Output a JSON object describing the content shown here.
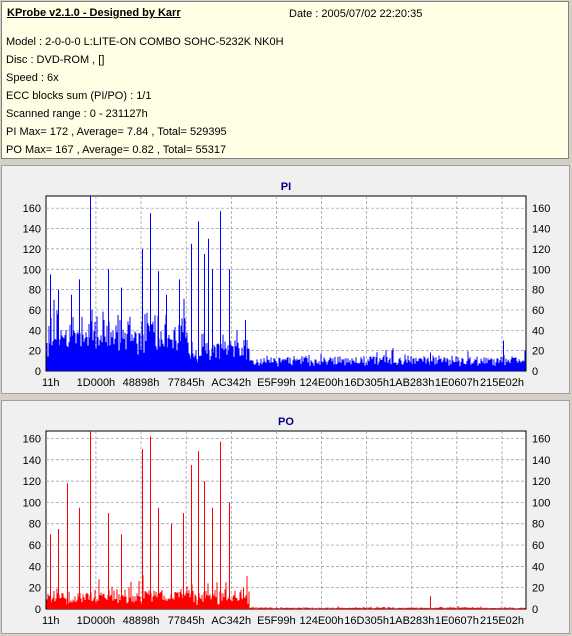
{
  "header": {
    "app_title": "KProbe v2.1.0 - Designed by Karr",
    "date": "Date : 2005/07/02 22:20:35",
    "lines": [
      "Model : 2-0-0-0 L:LITE-ON COMBO SOHC-5232K NK0H",
      "Disc : DVD-ROM ,  []",
      "Speed : 6x",
      "ECC blocks sum (PI/PO) : 1/1",
      "Scanned range : 0 - 231127h",
      "PI Max= 172 , Average= 7.84 , Total= 529395",
      "PO Max= 167 , Average= 0.82 , Total= 55317"
    ]
  },
  "chart_data": [
    {
      "type": "bar",
      "title": "PI",
      "color": "#0000ff",
      "xlim": [
        0,
        231127
      ],
      "ylim": [
        0,
        172
      ],
      "yticks": [
        0,
        20,
        40,
        60,
        80,
        100,
        120,
        140,
        160
      ],
      "xtick_labels": [
        "11h",
        "1D000h",
        "48898h",
        "77845h",
        "AC342h",
        "E5F99h",
        "124E00h",
        "16D305h",
        "1AB283h",
        "1E0607h",
        "215E02h"
      ],
      "xtick_values": [
        17,
        118784,
        297112,
        489541,
        705346,
        941977,
        1199616,
        1495813,
        1749635,
        1967623,
        2186754
      ],
      "grid": "dashed",
      "segments": [
        {
          "from": 0,
          "to": 68000,
          "base": 38,
          "spread": 24
        },
        {
          "from": 68000,
          "to": 98000,
          "base": 20,
          "spread": 14
        },
        {
          "from": 98000,
          "to": 231127,
          "base": 10,
          "spread": 8
        }
      ],
      "spikes": [
        [
          2000,
          95
        ],
        [
          6000,
          80
        ],
        [
          12000,
          75
        ],
        [
          16000,
          90
        ],
        [
          21000,
          172
        ],
        [
          30000,
          100
        ],
        [
          36000,
          82
        ],
        [
          46000,
          120
        ],
        [
          50000,
          155
        ],
        [
          54000,
          98
        ],
        [
          58000,
          75
        ],
        [
          64000,
          90
        ],
        [
          70000,
          125
        ],
        [
          73000,
          147
        ],
        [
          76000,
          115
        ],
        [
          78000,
          130
        ],
        [
          80000,
          100
        ],
        [
          84000,
          157
        ],
        [
          88000,
          100
        ],
        [
          96000,
          50
        ],
        [
          185000,
          18
        ],
        [
          220000,
          30
        ]
      ]
    },
    {
      "type": "bar",
      "title": "PO",
      "color": "#ff0000",
      "xlim": [
        0,
        231127
      ],
      "ylim": [
        0,
        167
      ],
      "yticks": [
        0,
        20,
        40,
        60,
        80,
        100,
        120,
        140,
        160
      ],
      "xtick_labels": [
        "11h",
        "1D000h",
        "48898h",
        "77845h",
        "AC342h",
        "E5F99h",
        "124E00h",
        "16D305h",
        "1AB283h",
        "1E0607h",
        "215E02h"
      ],
      "grid": "dashed",
      "segments": [
        {
          "from": 0,
          "to": 98000,
          "base": 10,
          "spread": 14
        },
        {
          "from": 98000,
          "to": 231127,
          "base": 1,
          "spread": 1
        }
      ],
      "spikes": [
        [
          2000,
          70
        ],
        [
          6000,
          75
        ],
        [
          10000,
          118
        ],
        [
          16000,
          95
        ],
        [
          21000,
          167
        ],
        [
          30000,
          90
        ],
        [
          36000,
          70
        ],
        [
          46000,
          150
        ],
        [
          50000,
          162
        ],
        [
          54000,
          95
        ],
        [
          60000,
          80
        ],
        [
          66000,
          90
        ],
        [
          70000,
          135
        ],
        [
          73000,
          148
        ],
        [
          76000,
          120
        ],
        [
          80000,
          95
        ],
        [
          84000,
          157
        ],
        [
          88000,
          100
        ],
        [
          95000,
          20
        ],
        [
          185000,
          12
        ]
      ]
    }
  ]
}
